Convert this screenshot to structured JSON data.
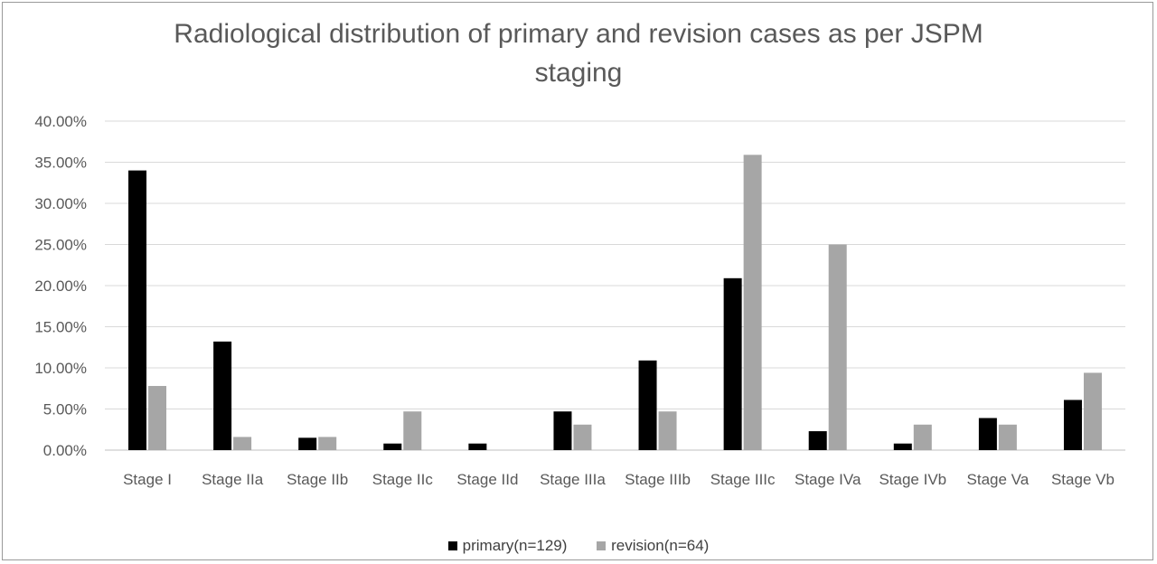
{
  "chart_data": {
    "type": "bar",
    "title_line1": "Radiological distribution of primary and revision cases as per JSPM",
    "title_line2": "staging",
    "categories": [
      "Stage I",
      "Stage IIa",
      "Stage IIb",
      "Stage IIc",
      "Stage IId",
      "Stage IIIa",
      "Stage IIIb",
      "Stage IIIc",
      "Stage IVa",
      "Stage IVb",
      "Stage Va",
      "Stage Vb"
    ],
    "series": [
      {
        "name": "primary(n=129)",
        "color": "#000000",
        "values": [
          34.0,
          13.2,
          1.5,
          0.8,
          0.8,
          4.7,
          10.9,
          20.9,
          2.3,
          0.8,
          3.9,
          6.1
        ]
      },
      {
        "name": "revision(n=64)",
        "color": "#a6a6a6",
        "values": [
          7.8,
          1.6,
          1.6,
          4.7,
          0.0,
          3.1,
          4.7,
          35.9,
          25.0,
          3.1,
          3.1,
          9.4
        ]
      }
    ],
    "yticks": [
      "0.00%",
      "5.00%",
      "10.00%",
      "15.00%",
      "20.00%",
      "25.00%",
      "30.00%",
      "35.00%",
      "40.00%"
    ],
    "ylim": [
      0,
      40
    ],
    "grid": true,
    "legend_position": "bottom"
  }
}
